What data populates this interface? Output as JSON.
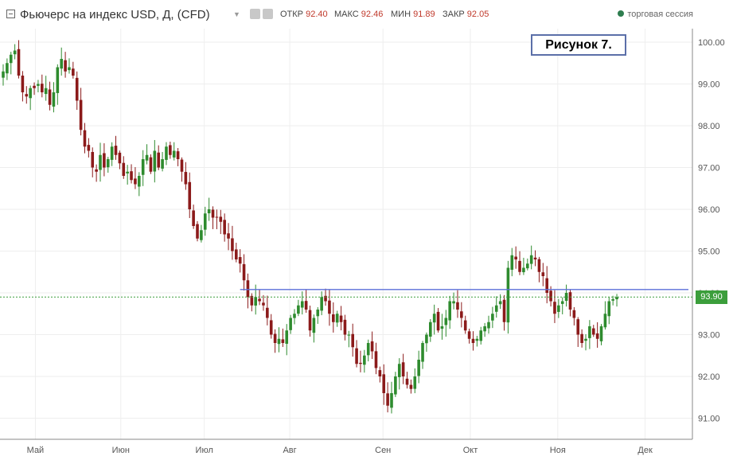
{
  "header": {
    "title": "Фьючерс на индекс USD, Д, (CFD)",
    "ohlc": [
      {
        "label": "ОТКР",
        "value": "92.40"
      },
      {
        "label": "МАКС",
        "value": "92.46"
      },
      {
        "label": "МИН",
        "value": "91.89"
      },
      {
        "label": "ЗАКР",
        "value": "92.05"
      }
    ],
    "session": "торговая сессия",
    "session_color": "#2e7d4f"
  },
  "annotation": {
    "figure_label": "Рисунок 7."
  },
  "last_price": {
    "label": "93.90",
    "value": 93.9,
    "color": "#3b9e3b"
  },
  "colors": {
    "up": "#2e8b2e",
    "down": "#8b1a1a",
    "level_line": "#5b6fd8",
    "price_line": "#3b9e3b",
    "grid": "#eeeeee"
  },
  "chart_data": {
    "type": "candlestick",
    "ylim": [
      90.6,
      100.3
    ],
    "y_ticks": [
      "91.00",
      "92.00",
      "93.00",
      "94.00",
      "95.00",
      "96.00",
      "97.00",
      "98.00",
      "99.00",
      "100.00"
    ],
    "x_ticks": [
      "Май",
      "Июн",
      "Июл",
      "Авг",
      "Сен",
      "Окт",
      "Ноя",
      "Дек"
    ],
    "x_tick_positions": [
      0.5,
      22.5,
      44,
      66,
      90,
      112.5,
      135,
      157.5
    ],
    "horizontal_level": {
      "value": 94.08,
      "from_index": 61,
      "to_index": 176
    },
    "price_line": 93.9,
    "grid": true,
    "closes": [
      99.3,
      99.5,
      99.7,
      99.8,
      99.2,
      98.8,
      98.7,
      98.9,
      98.9,
      99.0,
      98.8,
      98.9,
      98.5,
      98.8,
      99.4,
      99.6,
      99.3,
      99.4,
      99.2,
      98.6,
      97.9,
      97.5,
      97.4,
      97.0,
      96.9,
      97.3,
      97.0,
      97.2,
      97.5,
      97.3,
      97.1,
      96.8,
      96.9,
      96.7,
      96.6,
      96.8,
      97.2,
      97.3,
      96.9,
      97.4,
      97.0,
      97.2,
      97.5,
      97.3,
      97.4,
      97.2,
      96.9,
      96.6,
      96.0,
      95.6,
      95.3,
      95.5,
      95.9,
      96.0,
      95.8,
      95.8,
      95.7,
      95.4,
      95.3,
      95.0,
      94.8,
      94.7,
      94.3,
      93.9,
      93.7,
      93.9,
      93.8,
      93.7,
      93.4,
      93.0,
      92.8,
      92.9,
      92.8,
      93.1,
      93.4,
      93.5,
      93.7,
      93.8,
      93.6,
      93.1,
      93.4,
      93.6,
      93.9,
      93.8,
      93.5,
      93.3,
      93.5,
      93.3,
      93.0,
      93.0,
      92.7,
      92.3,
      92.3,
      92.5,
      92.8,
      92.6,
      92.2,
      92.0,
      91.6,
      91.3,
      91.6,
      92.0,
      92.3,
      92.0,
      91.8,
      91.7,
      92.0,
      92.4,
      92.8,
      93.0,
      93.3,
      93.5,
      93.1,
      93.2,
      93.4,
      93.8,
      93.8,
      93.6,
      93.4,
      93.1,
      92.9,
      92.8,
      92.9,
      93.1,
      93.2,
      93.3,
      93.5,
      93.7,
      93.8,
      93.3,
      94.6,
      94.9,
      94.8,
      94.5,
      94.6,
      94.7,
      94.9,
      94.8,
      94.5,
      94.4,
      94.0,
      93.8,
      93.5,
      93.7,
      93.8,
      94.0,
      93.6,
      93.4,
      93.0,
      92.8,
      92.9,
      93.2,
      93.0,
      92.9,
      93.2,
      93.5,
      93.8,
      93.85,
      93.9
    ]
  }
}
